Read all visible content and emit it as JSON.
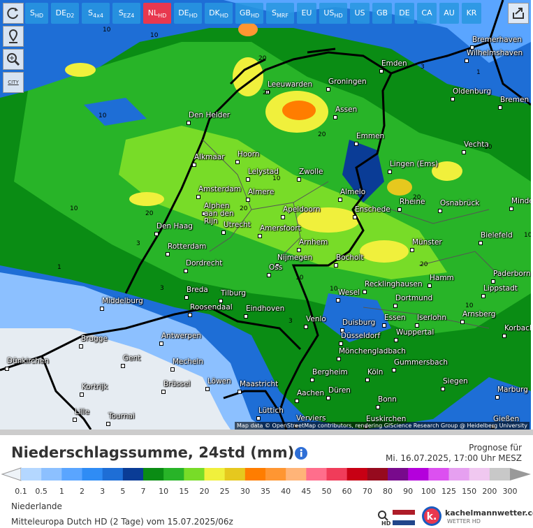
{
  "toolbar": {
    "buttons": [
      {
        "main": "S",
        "sub": "HD"
      },
      {
        "main": "DE",
        "sub": "D2"
      },
      {
        "main": "S",
        "sub": "4x4"
      },
      {
        "main": "S",
        "sub": "EZ4"
      },
      {
        "main": "NL",
        "sub": "HD"
      },
      {
        "main": "DE",
        "sub": "HD"
      },
      {
        "main": "DK",
        "sub": "HD"
      },
      {
        "main": "GB",
        "sub": "HD"
      },
      {
        "main": "S",
        "sub": "MRF"
      },
      {
        "main": "EU"
      },
      {
        "main": "US",
        "sub": "HD"
      },
      {
        "main": "US"
      },
      {
        "main": "GB"
      },
      {
        "main": "DE"
      },
      {
        "main": "CA"
      },
      {
        "main": "AU"
      },
      {
        "main": "KR"
      }
    ],
    "active": 4,
    "city_button": "CITY"
  },
  "map": {
    "cities": [
      "Bremerhaven",
      "Wilhelmshaven",
      "Emden",
      "Oldenburg",
      "Bremen",
      "Leeuwarden",
      "Groningen",
      "Den Helder",
      "Assen",
      "Emmen",
      "Vechta",
      "Hoorn",
      "Alkmaar",
      "Lelystad",
      "Zwolle",
      "Lingen (Ems)",
      "Amsterdam",
      "Almere",
      "Almelo",
      "Rheine",
      "Osnabrück",
      "Minden",
      "Alphen aan den Rijn",
      "Apeldoorn",
      "Enschede",
      "Den Haag",
      "Utrecht",
      "Amersfoort",
      "Bielefeld",
      "Arnhem",
      "Münster",
      "Rotterdam",
      "Dordrecht",
      "Nijmegen",
      "Bocholt",
      "Oss",
      "Paderborn",
      "Hamm",
      "Recklinghausen",
      "Lippstadt",
      "Breda",
      "Tilburg",
      "Wesel",
      "Middelburg",
      "Dortmund",
      "Roosendaal",
      "Eindhoven",
      "Arnsberg",
      "Venlo",
      "Essen",
      "Iserlohn",
      "Duisburg",
      "Korbach",
      "Brugge",
      "Antwerpen",
      "Wuppertal",
      "Düsseldorf",
      "Mönchengladbach",
      "Gent",
      "Dünkirchen",
      "Mecheln",
      "Gummersbach",
      "Bergheim",
      "Köln",
      "Kortrijk",
      "Brüssel",
      "Löwen",
      "Maastricht",
      "Siegen",
      "Düren",
      "Marburg",
      "Aachen",
      "Bonn",
      "Lille",
      "Lüttich",
      "Tournai",
      "Verviers",
      "Euskirchen",
      "Gießen"
    ],
    "contour_labels": [
      10,
      10,
      20,
      20,
      10,
      20,
      10,
      20,
      3,
      1,
      3,
      10,
      20,
      10,
      20,
      20,
      10,
      10,
      3,
      10,
      1,
      3,
      10
    ],
    "attribution": "Map data © OpenStreetMap contributors, rendering GIScience Research Group @ Heidelberg University"
  },
  "header": {
    "title": "Niederschlagssumme, 24std (mm)",
    "forecast_label": "Prognose für",
    "forecast_time": "Mi. 16.07.2025, 17:00 Uhr MESZ"
  },
  "legend": {
    "ticks": [
      0.1,
      0.5,
      1,
      2,
      3,
      5,
      7,
      10,
      15,
      20,
      25,
      30,
      35,
      40,
      45,
      50,
      60,
      70,
      80,
      90,
      100,
      125,
      150,
      200,
      300
    ],
    "colors": [
      "#b4d7ff",
      "#8cc0ff",
      "#5aa5ff",
      "#2f8cf5",
      "#1e6ed6",
      "#0a3c96",
      "#0a8c14",
      "#28b428",
      "#78dc28",
      "#f0f03c",
      "#e6c81e",
      "#ff7d00",
      "#ff9632",
      "#ffb478",
      "#ff6e8c",
      "#f03c5a",
      "#c80014",
      "#960a1e",
      "#780a8c",
      "#b400dc",
      "#dc50f0",
      "#e6a0f0",
      "#f0c8f0",
      "#c8c8c8"
    ],
    "under_color": "#eef3f8",
    "over_color": "#999999"
  },
  "footer": {
    "region": "Niederlande",
    "model_run": "Mitteleuropa Dutch HD (2 Tage) vom 15.07.2025/06z",
    "hd_label": "HD",
    "brand": "kachelmannwetter.com",
    "brand_sub": "WETTER HD"
  }
}
